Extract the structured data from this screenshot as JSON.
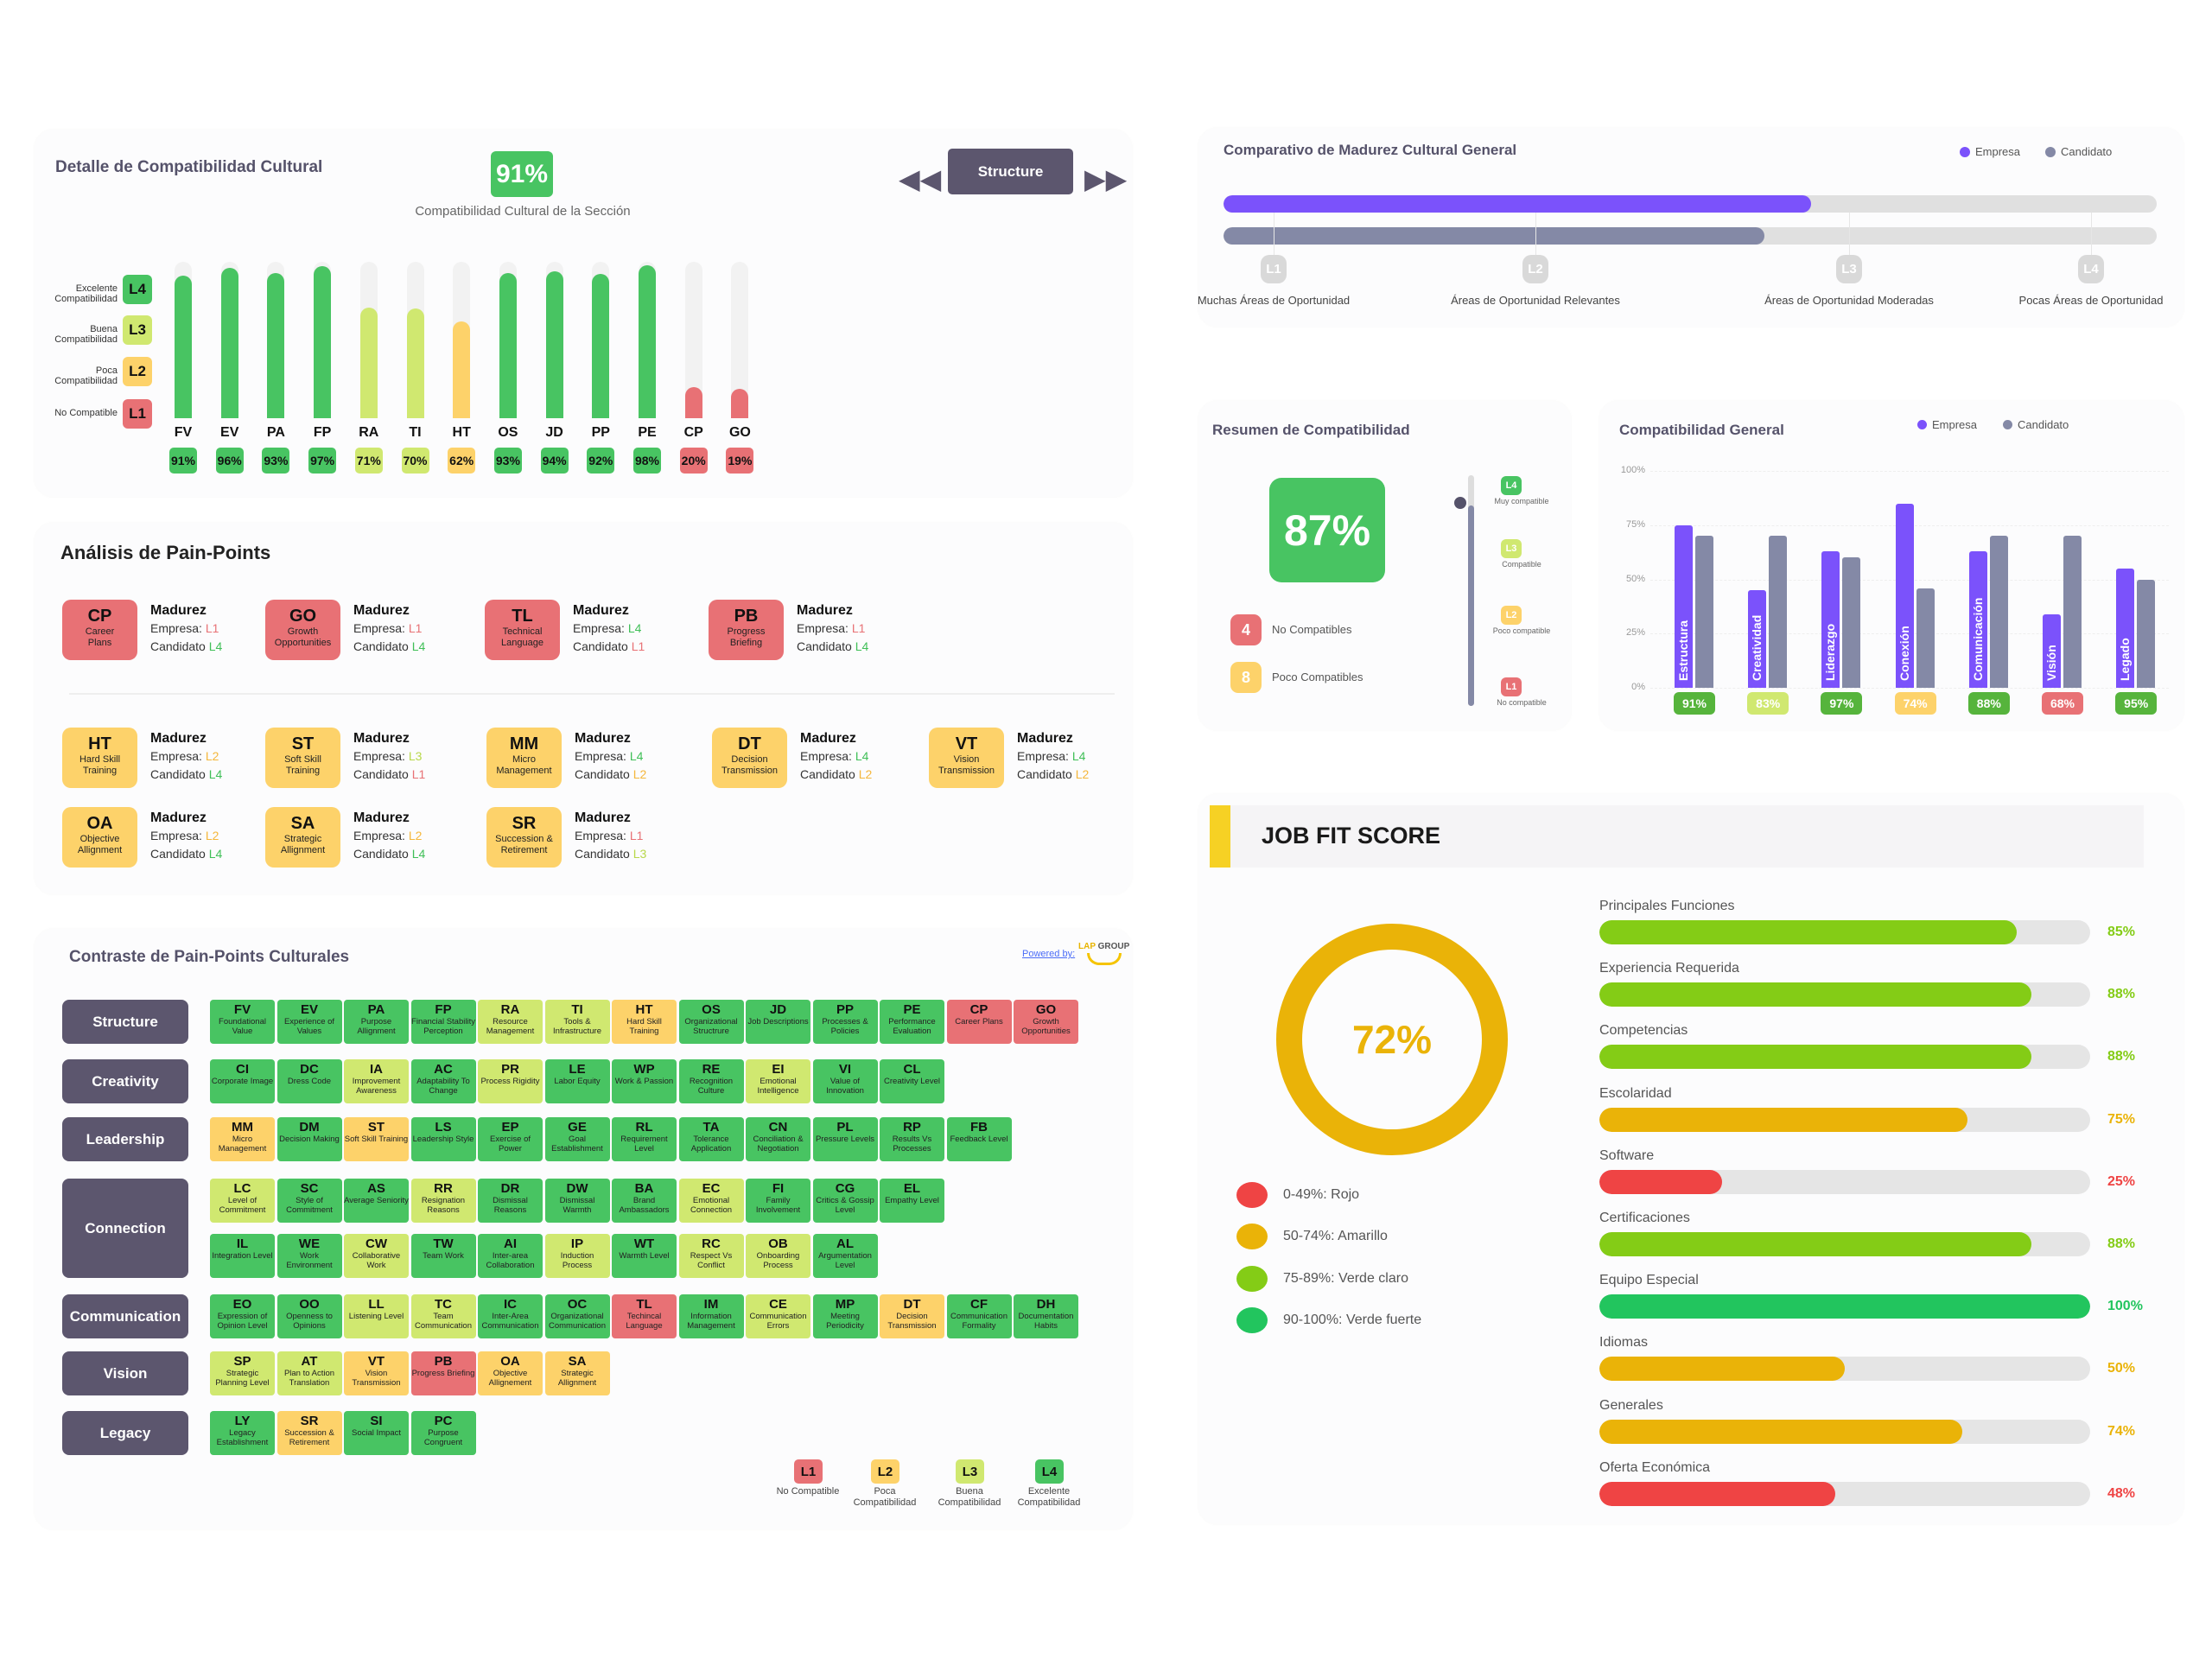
{
  "colors": {
    "L1": "#e87175",
    "L2": "#fdd26a",
    "L3": "#d0e870",
    "L4": "#48c462",
    "slate": "#5c566e",
    "empresa": "#7b52fb",
    "candidato": "#8489a6"
  },
  "detail": {
    "title": "Detalle de Compatibilidad Cultural",
    "score": "91%",
    "subtitle": "Compatibilidad Cultural de la Sección",
    "section_button": "Structure",
    "prev_icon": "rewind-icon",
    "next_icon": "fast-forward-icon",
    "levels": [
      {
        "code": "L4",
        "label": "Excelente Compatibilidad"
      },
      {
        "code": "L3",
        "label": "Buena Compatibilidad"
      },
      {
        "code": "L2",
        "label": "Poca Compatibilidad"
      },
      {
        "code": "L1",
        "label": "No Compatible"
      }
    ],
    "bars": [
      {
        "code": "FV",
        "value": 91,
        "level": "L4"
      },
      {
        "code": "EV",
        "value": 96,
        "level": "L4"
      },
      {
        "code": "PA",
        "value": 93,
        "level": "L4"
      },
      {
        "code": "FP",
        "value": 97,
        "level": "L4"
      },
      {
        "code": "RA",
        "value": 71,
        "level": "L3"
      },
      {
        "code": "TI",
        "value": 70,
        "level": "L3"
      },
      {
        "code": "HT",
        "value": 62,
        "level": "L2"
      },
      {
        "code": "OS",
        "value": 93,
        "level": "L4"
      },
      {
        "code": "JD",
        "value": 94,
        "level": "L4"
      },
      {
        "code": "PP",
        "value": 92,
        "level": "L4"
      },
      {
        "code": "PE",
        "value": 98,
        "level": "L4"
      },
      {
        "code": "CP",
        "value": 20,
        "level": "L1"
      },
      {
        "code": "GO",
        "value": 19,
        "level": "L1"
      }
    ]
  },
  "painpoints": {
    "title": "Análisis de Pain-Points",
    "heading": "Madurez",
    "empresa_label": "Empresa:",
    "candidato_label": "Candidato",
    "rows": [
      [
        {
          "code": "CP",
          "name": "Career Plans",
          "level": "L1",
          "empresa": "L1",
          "candidato": "L4"
        },
        {
          "code": "GO",
          "name": "Growth Opportunities",
          "level": "L1",
          "empresa": "L1",
          "candidato": "L4"
        },
        {
          "code": "TL",
          "name": "Technical Language",
          "level": "L1",
          "empresa": "L4",
          "candidato": "L1"
        },
        {
          "code": "PB",
          "name": "Progress Briefing",
          "level": "L1",
          "empresa": "L1",
          "candidato": "L4"
        }
      ],
      [
        {
          "code": "HT",
          "name": "Hard Skill Training",
          "level": "L2",
          "empresa": "L2",
          "candidato": "L4"
        },
        {
          "code": "ST",
          "name": "Soft Skill Training",
          "level": "L2",
          "empresa": "L3",
          "candidato": "L1"
        },
        {
          "code": "MM",
          "name": "Micro Management",
          "level": "L2",
          "empresa": "L4",
          "candidato": "L2"
        },
        {
          "code": "DT",
          "name": "Decision Transmission",
          "level": "L2",
          "empresa": "L4",
          "candidato": "L2"
        },
        {
          "code": "VT",
          "name": "Vision Transmission",
          "level": "L2",
          "empresa": "L4",
          "candidato": "L2"
        }
      ],
      [
        {
          "code": "OA",
          "name": "Objective Allignment",
          "level": "L2",
          "empresa": "L2",
          "candidato": "L4"
        },
        {
          "code": "SA",
          "name": "Strategic Allignment",
          "level": "L2",
          "empresa": "L2",
          "candidato": "L4"
        },
        {
          "code": "SR",
          "name": "Succession & Retirement",
          "level": "L2",
          "empresa": "L1",
          "candidato": "L3"
        }
      ]
    ]
  },
  "contrast": {
    "title": "Contraste de Pain-Points Culturales",
    "powered_by": "Powered by:",
    "logo_text": "LAP GROUP",
    "rows": [
      {
        "label": "Structure",
        "lines": [
          [
            [
              "FV",
              "Foundational Value",
              "L4"
            ],
            [
              "EV",
              "Experience of Values",
              "L4"
            ],
            [
              "PA",
              "Purpose Allignment",
              "L4"
            ],
            [
              "FP",
              "Financial Stability Perception",
              "L4"
            ],
            [
              "RA",
              "Resource Management",
              "L3"
            ],
            [
              "TI",
              "Tools & Infrastructure",
              "L3"
            ],
            [
              "HT",
              "Hard Skill Training",
              "L2"
            ],
            [
              "OS",
              "Organizational Structrure",
              "L4"
            ],
            [
              "JD",
              "Job Descriptions",
              "L4"
            ],
            [
              "PP",
              "Processes & Policies",
              "L4"
            ],
            [
              "PE",
              "Performance Evaluation",
              "L4"
            ],
            [
              "CP",
              "Career Plans",
              "L1"
            ],
            [
              "GO",
              "Growth Opportunities",
              "L1"
            ]
          ]
        ]
      },
      {
        "label": "Creativity",
        "lines": [
          [
            [
              "CI",
              "Corporate Image",
              "L4"
            ],
            [
              "DC",
              "Dress Code",
              "L4"
            ],
            [
              "IA",
              "Improvement Awareness",
              "L3"
            ],
            [
              "AC",
              "Adaptability To Change",
              "L4"
            ],
            [
              "PR",
              "Process Rigidity",
              "L3"
            ],
            [
              "LE",
              "Labor Equity",
              "L4"
            ],
            [
              "WP",
              "Work & Passion",
              "L4"
            ],
            [
              "RE",
              "Recognition Culture",
              "L4"
            ],
            [
              "EI",
              "Emotional Intelligence",
              "L3"
            ],
            [
              "VI",
              "Value of Innovation",
              "L4"
            ],
            [
              "CL",
              "Creativity Level",
              "L4"
            ]
          ]
        ]
      },
      {
        "label": "Leadership",
        "lines": [
          [
            [
              "MM",
              "Micro Management",
              "L2"
            ],
            [
              "DM",
              "Decision Making",
              "L4"
            ],
            [
              "ST",
              "Soft Skill Training",
              "L2"
            ],
            [
              "LS",
              "Leadership Style",
              "L4"
            ],
            [
              "EP",
              "Exercise of Power",
              "L4"
            ],
            [
              "GE",
              "Goal Establishment",
              "L4"
            ],
            [
              "RL",
              "Requirement Level",
              "L4"
            ],
            [
              "TA",
              "Tolerance Application",
              "L4"
            ],
            [
              "CN",
              "Conciliation & Negotiation",
              "L4"
            ],
            [
              "PL",
              "Pressure Levels",
              "L4"
            ],
            [
              "RP",
              "Results Vs Processes",
              "L4"
            ],
            [
              "FB",
              "Feedback Level",
              "L4"
            ]
          ]
        ]
      },
      {
        "label": "Connection",
        "lines": [
          [
            [
              "LC",
              "Level of Commitment",
              "L3"
            ],
            [
              "SC",
              "Style of Commitment",
              "L4"
            ],
            [
              "AS",
              "Average Seniority",
              "L4"
            ],
            [
              "RR",
              "Resignation Reasons",
              "L3"
            ],
            [
              "DR",
              "Dismissal Reasons",
              "L4"
            ],
            [
              "DW",
              "Dismissal Warmth",
              "L4"
            ],
            [
              "BA",
              "Brand Ambassadors",
              "L4"
            ],
            [
              "EC",
              "Emotional Connection",
              "L3"
            ],
            [
              "FI",
              "Family Involvement",
              "L4"
            ],
            [
              "CG",
              "Critics & Gossip Level",
              "L4"
            ],
            [
              "EL",
              "Empathy Level",
              "L4"
            ]
          ],
          [
            [
              "IL",
              "Integration Level",
              "L4"
            ],
            [
              "WE",
              "Work Environment",
              "L4"
            ],
            [
              "CW",
              "Collaborative Work",
              "L3"
            ],
            [
              "TW",
              "Team Work",
              "L4"
            ],
            [
              "AI",
              "Inter-area Collaboration",
              "L4"
            ],
            [
              "IP",
              "Induction Process",
              "L3"
            ],
            [
              "WT",
              "Warmth Level",
              "L4"
            ],
            [
              "RC",
              "Respect Vs Conflict",
              "L3"
            ],
            [
              "OB",
              "Onboarding Process",
              "L3"
            ],
            [
              "AL",
              "Argumentation Level",
              "L4"
            ]
          ]
        ]
      },
      {
        "label": "Communication",
        "lines": [
          [
            [
              "EO",
              "Expression of Opinion Level",
              "L4"
            ],
            [
              "OO",
              "Openness to Opinions",
              "L4"
            ],
            [
              "LL",
              "Listening Level",
              "L3"
            ],
            [
              "TC",
              "Team Communication",
              "L3"
            ],
            [
              "IC",
              "Inter-Area Communication",
              "L4"
            ],
            [
              "OC",
              "Organizational Communication",
              "L4"
            ],
            [
              "TL",
              "Techincal Language",
              "L1"
            ],
            [
              "IM",
              "Information Management",
              "L4"
            ],
            [
              "CE",
              "Communication Errors",
              "L3"
            ],
            [
              "MP",
              "Meeting Periodicity",
              "L4"
            ],
            [
              "DT",
              "Decision Transmission",
              "L2"
            ],
            [
              "CF",
              "Communication Formality",
              "L4"
            ],
            [
              "DH",
              "Documentation Habits",
              "L4"
            ]
          ]
        ]
      },
      {
        "label": "Vision",
        "lines": [
          [
            [
              "SP",
              "Strategic Planning Level",
              "L3"
            ],
            [
              "AT",
              "Plan to Action Translation",
              "L3"
            ],
            [
              "VT",
              "Vision Transmission",
              "L2"
            ],
            [
              "PB",
              "Progress Briefing",
              "L1"
            ],
            [
              "OA",
              "Objective Allignement",
              "L2"
            ],
            [
              "SA",
              "Strategic Allignment",
              "L2"
            ]
          ]
        ]
      },
      {
        "label": "Legacy",
        "lines": [
          [
            [
              "LY",
              "Legacy Establishment",
              "L4"
            ],
            [
              "SR",
              "Succession & Retirement",
              "L2"
            ],
            [
              "SI",
              "Social Impact",
              "L4"
            ],
            [
              "PC",
              "Purpose Congruent",
              "L4"
            ]
          ]
        ]
      }
    ],
    "legend": [
      {
        "code": "L1",
        "label": "No Compatible"
      },
      {
        "code": "L2",
        "label": "Poca Compatibilidad"
      },
      {
        "code": "L3",
        "label": "Buena Compatibilidad"
      },
      {
        "code": "L4",
        "label": "Excelente Compatibilidad"
      }
    ]
  },
  "maturity": {
    "title": "Comparativo de Madurez Cultural General",
    "legend": [
      "Empresa",
      "Candidato"
    ],
    "empresa_fraction": 0.63,
    "candidato_fraction": 0.58,
    "ticks": [
      {
        "code": "L1",
        "label": "Muchas Áreas de Oportunidad"
      },
      {
        "code": "L2",
        "label": "Áreas de Oportunidad Relevantes"
      },
      {
        "code": "L3",
        "label": "Áreas de Oportunidad Moderadas"
      },
      {
        "code": "L4",
        "label": "Pocas Áreas de Oportunidad"
      }
    ]
  },
  "summary": {
    "title": "Resumen de Compatibilidad",
    "score": "87%",
    "items": [
      {
        "count": "4",
        "label": "No Compatibles",
        "level": "L1"
      },
      {
        "count": "8",
        "label": "Poco Compatibles",
        "level": "L2"
      }
    ],
    "scale": [
      {
        "code": "L4",
        "label": "Muy compatible"
      },
      {
        "code": "L3",
        "label": "Compatible"
      },
      {
        "code": "L2",
        "label": "Poco compatible"
      },
      {
        "code": "L1",
        "label": "No compatible"
      }
    ],
    "slider_value_percent": 87
  },
  "chart_data": {
    "type": "bar",
    "title": "Compatibilidad General",
    "categories": [
      "Estructura",
      "Creatividad",
      "Liderazgo",
      "Conexión",
      "Comunicación",
      "Visión",
      "Legado"
    ],
    "series": [
      {
        "name": "Empresa",
        "values": [
          75,
          45,
          63,
          85,
          63,
          34,
          55
        ]
      },
      {
        "name": "Candidato",
        "values": [
          70,
          70,
          60,
          46,
          70,
          70,
          50
        ]
      }
    ],
    "yticks": [
      "0%",
      "25%",
      "50%",
      "75%",
      "100%"
    ],
    "ylim": [
      0,
      100
    ],
    "grid": true,
    "legend": "top-right",
    "badges": [
      {
        "text": "91%",
        "color": "#56b43c"
      },
      {
        "text": "83%",
        "color": "#d0e870"
      },
      {
        "text": "97%",
        "color": "#56b43c"
      },
      {
        "text": "74%",
        "color": "#fdd26a"
      },
      {
        "text": "88%",
        "color": "#56b43c"
      },
      {
        "text": "68%",
        "color": "#e87175"
      },
      {
        "text": "95%",
        "color": "#56b43c"
      }
    ]
  },
  "jobfit": {
    "title": "JOB FIT SCORE",
    "score": "72%",
    "score_value": 72,
    "legend": [
      {
        "label": "0-49%: Rojo",
        "color": "#ef4444"
      },
      {
        "label": "50-74%: Amarillo",
        "color": "#eab308"
      },
      {
        "label": "75-89%: Verde claro",
        "color": "#84cc16"
      },
      {
        "label": "90-100%: Verde fuerte",
        "color": "#22c55e"
      }
    ],
    "items": [
      {
        "label": "Principales Funciones",
        "value": 85,
        "text": "85%",
        "color": "#84cc16"
      },
      {
        "label": "Experiencia Requerida",
        "value": 88,
        "text": "88%",
        "color": "#84cc16"
      },
      {
        "label": "Competencias",
        "value": 88,
        "text": "88%",
        "color": "#84cc16"
      },
      {
        "label": "Escolaridad",
        "value": 75,
        "text": "75%",
        "color": "#eab308"
      },
      {
        "label": "Software",
        "value": 25,
        "text": "25%",
        "color": "#ef4444"
      },
      {
        "label": "Certificaciones",
        "value": 88,
        "text": "88%",
        "color": "#84cc16"
      },
      {
        "label": "Equipo Especial",
        "value": 100,
        "text": "100%",
        "color": "#22c55e"
      },
      {
        "label": "Idiomas",
        "value": 50,
        "text": "50%",
        "color": "#eab308"
      },
      {
        "label": "Generales",
        "value": 74,
        "text": "74%",
        "color": "#eab308"
      },
      {
        "label": "Oferta Económica",
        "value": 48,
        "text": "48%",
        "color": "#ef4444"
      }
    ]
  }
}
